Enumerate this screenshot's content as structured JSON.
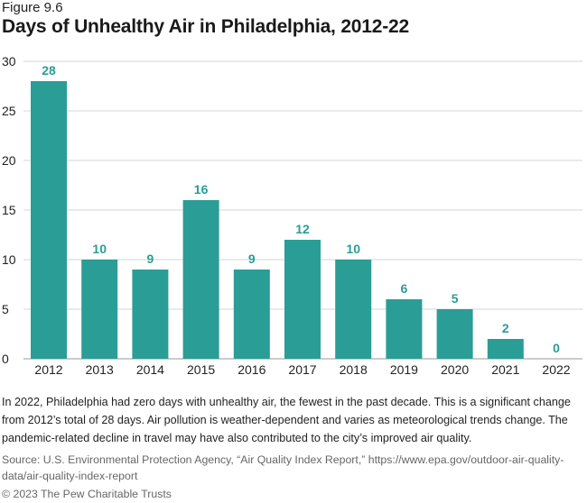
{
  "figure_label": "Figure 9.6",
  "chart_data": {
    "type": "bar",
    "title": "Days of Unhealthy Air in Philadelphia, 2012-22",
    "xlabel": "",
    "ylabel": "",
    "categories": [
      "2012",
      "2013",
      "2014",
      "2015",
      "2016",
      "2017",
      "2018",
      "2019",
      "2020",
      "2021",
      "2022"
    ],
    "values": [
      28,
      10,
      9,
      16,
      9,
      12,
      10,
      6,
      5,
      2,
      0
    ],
    "ylim": [
      0,
      30
    ],
    "yticks": [
      0,
      5,
      10,
      15,
      20,
      25,
      30
    ],
    "grid": true,
    "bar_color": "#2a9d96",
    "label_color": "#2a9d96"
  },
  "note": "In 2022, Philadelphia had zero days with unhealthy air, the fewest in the past decade. This is a significant change from 2012’s total of 28 days. Air pollution is weather-dependent and varies as meteorological trends change. The pandemic-related decline in travel may have also contributed to the city’s improved air quality.",
  "source": "Source: U.S. Environmental Protection Agency, “Air Quality Index Report,” https://www.epa.gov/outdoor-air-quality-data/air-quality-index-report",
  "copyright": "© 2023 The Pew Charitable Trusts"
}
